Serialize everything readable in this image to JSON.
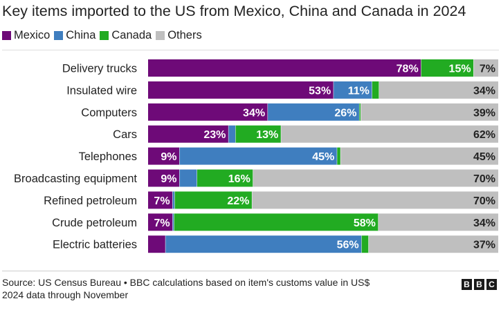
{
  "title": "Key items imported to the US from Mexico, China and Canada in 2024",
  "legend": [
    {
      "name": "Mexico",
      "color": "#6e0a78"
    },
    {
      "name": "China",
      "color": "#3f7ebf"
    },
    {
      "name": "Canada",
      "color": "#22ab22"
    },
    {
      "name": "Others",
      "color": "#bfbfbf"
    }
  ],
  "chart_data": {
    "type": "bar",
    "orientation": "horizontal",
    "stacked": true,
    "xlim": [
      0,
      100
    ],
    "unit": "%",
    "categories": [
      "Delivery trucks",
      "Insulated wire",
      "Computers",
      "Cars",
      "Telephones",
      "Broadcasting equipment",
      "Refined petroleum",
      "Crude petroleum",
      "Electric batteries"
    ],
    "series": [
      {
        "name": "Mexico",
        "color": "#6e0a78",
        "values": [
          78,
          53,
          34,
          23,
          9,
          9,
          7,
          7,
          5
        ]
      },
      {
        "name": "China",
        "color": "#3f7ebf",
        "values": [
          0,
          11,
          26,
          2,
          45,
          5,
          0.6,
          0.4,
          56
        ]
      },
      {
        "name": "Canada",
        "color": "#22ab22",
        "values": [
          15,
          2,
          0.4,
          13,
          1,
          16,
          22,
          58,
          2
        ]
      },
      {
        "name": "Others",
        "color": "#bfbfbf",
        "values": [
          7,
          34,
          39,
          62,
          45,
          70,
          70,
          34,
          37
        ]
      }
    ],
    "data_labels": [
      [
        "78%",
        "",
        "15%",
        "7%"
      ],
      [
        "53%",
        "11%",
        "",
        "34%"
      ],
      [
        "34%",
        "26%",
        "",
        "39%"
      ],
      [
        "23%",
        "",
        "13%",
        "62%"
      ],
      [
        "9%",
        "45%",
        "",
        "45%"
      ],
      [
        "9%",
        "",
        "16%",
        "70%"
      ],
      [
        "7%",
        "",
        "22%",
        "70%"
      ],
      [
        "7%",
        "",
        "58%",
        "34%"
      ],
      [
        "",
        "56%",
        "",
        "37%"
      ]
    ],
    "grid": false,
    "legend_position": "top-left"
  },
  "source": {
    "line1": "Source: US Census Bureau • BBC calculations based on item's customs value in US$",
    "line2": "2024 data through November"
  },
  "logo": {
    "letters": [
      "B",
      "B",
      "C"
    ]
  }
}
